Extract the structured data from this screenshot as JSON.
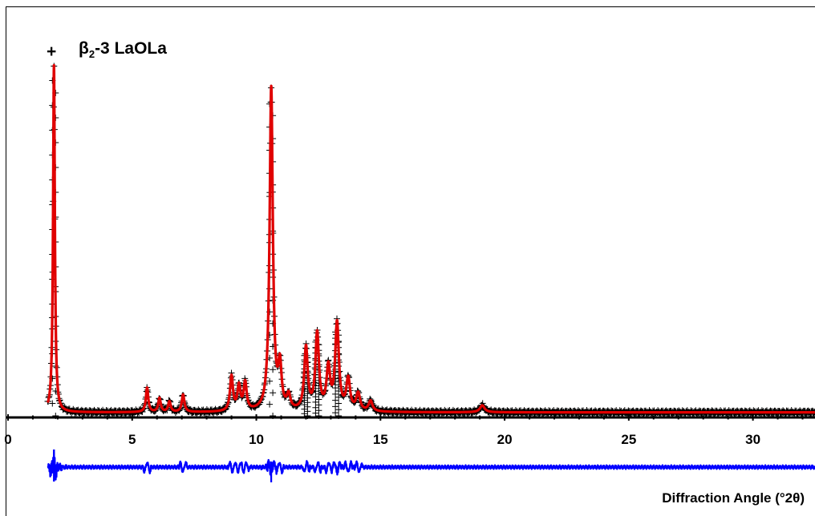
{
  "chart_data": {
    "type": "line",
    "title": "",
    "xlabel": "Diffraction Angle (°2θ)",
    "ylabel": "",
    "xlim": [
      0,
      32.5
    ],
    "xticks": [
      0,
      5,
      10,
      15,
      20,
      25,
      30
    ],
    "xtick_labels": [
      "0",
      "5",
      "10",
      "15",
      "20",
      "25",
      "30"
    ],
    "legend": {
      "marker": "+",
      "label_main": "β",
      "label_sub": "2",
      "label_rest": "-3 LaOLa",
      "placement": "top-left"
    },
    "colors": {
      "observed": "#000000",
      "calculated": "#e00000",
      "difference": "#0000ff",
      "axis": "#000000"
    },
    "series": [
      {
        "name": "β2-3 LaOLa",
        "style": "markers-plus",
        "peaks": [
          {
            "x": 1.85,
            "y": 100
          },
          {
            "x": 5.6,
            "y": 7
          },
          {
            "x": 6.1,
            "y": 4
          },
          {
            "x": 6.5,
            "y": 3
          },
          {
            "x": 7.05,
            "y": 5
          },
          {
            "x": 9.0,
            "y": 10
          },
          {
            "x": 9.3,
            "y": 7
          },
          {
            "x": 9.55,
            "y": 8
          },
          {
            "x": 10.6,
            "y": 93
          },
          {
            "x": 10.95,
            "y": 12
          },
          {
            "x": 11.3,
            "y": 4
          },
          {
            "x": 12.0,
            "y": 18
          },
          {
            "x": 12.45,
            "y": 22
          },
          {
            "x": 12.9,
            "y": 12
          },
          {
            "x": 13.25,
            "y": 25
          },
          {
            "x": 13.7,
            "y": 9
          },
          {
            "x": 14.1,
            "y": 5
          },
          {
            "x": 14.6,
            "y": 3
          },
          {
            "x": 19.1,
            "y": 2
          }
        ],
        "baseline": 1
      },
      {
        "name": "",
        "style": "line-calculated",
        "same_as": "observed"
      },
      {
        "name": "",
        "style": "line-difference",
        "offset": -15,
        "features": [
          {
            "x": 1.85,
            "amplitude": 6
          },
          {
            "x": 10.6,
            "amplitude": 3
          },
          {
            "x": 13.25,
            "amplitude": 1.5
          }
        ]
      }
    ],
    "grid": false
  }
}
